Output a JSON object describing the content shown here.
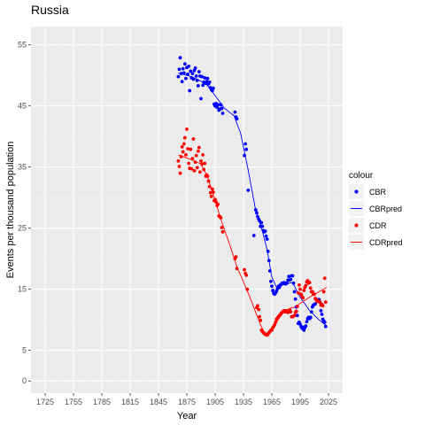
{
  "chart_data": {
    "type": "scatter",
    "title": "Russia",
    "xlabel": "Year",
    "ylabel": "Events per thousand population",
    "xlim": [
      1710,
      2040
    ],
    "ylim": [
      -2,
      58
    ],
    "x_ticks": [
      1725,
      1755,
      1785,
      1815,
      1845,
      1875,
      1905,
      1935,
      1965,
      1995,
      2025
    ],
    "y_ticks": [
      0,
      5,
      15,
      25,
      35,
      45,
      55
    ],
    "grid": true,
    "legend": {
      "title": "colour",
      "position": "right",
      "entries": [
        {
          "label": "CBR",
          "kind": "point",
          "color": "#0000ff"
        },
        {
          "label": "CBRpred",
          "kind": "line",
          "color": "#0000ff"
        },
        {
          "label": "CDR",
          "kind": "point",
          "color": "#ff0000"
        },
        {
          "label": "CDRpred",
          "kind": "line",
          "color": "#ff0000"
        }
      ]
    },
    "series": [
      {
        "name": "CBR",
        "kind": "point",
        "color": "#0000ff",
        "points": [
          [
            1866,
            49.8
          ],
          [
            1867,
            51.0
          ],
          [
            1868,
            52.9
          ],
          [
            1869,
            50.3
          ],
          [
            1870,
            49.0
          ],
          [
            1871,
            51.1
          ],
          [
            1872,
            50.4
          ],
          [
            1873,
            51.9
          ],
          [
            1874,
            49.5
          ],
          [
            1875,
            51.3
          ],
          [
            1876,
            50.2
          ],
          [
            1877,
            51.5
          ],
          [
            1878,
            47.5
          ],
          [
            1879,
            50.7
          ],
          [
            1880,
            49.6
          ],
          [
            1881,
            50.3
          ],
          [
            1882,
            49.4
          ],
          [
            1883,
            50.8
          ],
          [
            1884,
            51.2
          ],
          [
            1885,
            49.9
          ],
          [
            1886,
            49.2
          ],
          [
            1887,
            48.3
          ],
          [
            1888,
            50.6
          ],
          [
            1889,
            49.9
          ],
          [
            1890,
            46.2
          ],
          [
            1891,
            49.8
          ],
          [
            1892,
            48.4
          ],
          [
            1893,
            48.9
          ],
          [
            1894,
            49.6
          ],
          [
            1895,
            48.7
          ],
          [
            1896,
            49.0
          ],
          [
            1897,
            49.5
          ],
          [
            1898,
            48.6
          ],
          [
            1899,
            48.9
          ],
          [
            1900,
            48.0
          ],
          [
            1901,
            47.7
          ],
          [
            1902,
            47.5
          ],
          [
            1903,
            47.9
          ],
          [
            1904,
            45.3
          ],
          [
            1905,
            45.0
          ],
          [
            1906,
            45.4
          ],
          [
            1907,
            44.8
          ],
          [
            1908,
            45.2
          ],
          [
            1909,
            44.3
          ],
          [
            1910,
            44.5
          ],
          [
            1911,
            45.2
          ],
          [
            1912,
            44.6
          ],
          [
            1913,
            43.8
          ],
          [
            1926,
            44.0
          ],
          [
            1927,
            43.2
          ],
          [
            1928,
            42.9
          ],
          [
            1936,
            36.9
          ],
          [
            1937,
            38.8
          ],
          [
            1938,
            37.9
          ],
          [
            1940,
            31.2
          ],
          [
            1946,
            23.8
          ],
          [
            1948,
            28.0
          ],
          [
            1949,
            27.5
          ],
          [
            1950,
            26.9
          ],
          [
            1951,
            26.5
          ],
          [
            1952,
            26.2
          ],
          [
            1953,
            25.3
          ],
          [
            1954,
            25.9
          ],
          [
            1955,
            25.3
          ],
          [
            1956,
            24.6
          ],
          [
            1957,
            24.4
          ],
          [
            1958,
            24.5
          ],
          [
            1959,
            23.7
          ],
          [
            1960,
            23.2
          ],
          [
            1961,
            21.2
          ],
          [
            1962,
            19.7
          ],
          [
            1963,
            18.0
          ],
          [
            1964,
            16.3
          ],
          [
            1965,
            15.5
          ],
          [
            1966,
            14.8
          ],
          [
            1967,
            14.3
          ],
          [
            1968,
            14.2
          ],
          [
            1969,
            14.4
          ],
          [
            1970,
            14.7
          ],
          [
            1971,
            15.1
          ],
          [
            1972,
            15.5
          ],
          [
            1973,
            15.3
          ],
          [
            1974,
            15.7
          ],
          [
            1975,
            15.8
          ],
          [
            1976,
            16.0
          ],
          [
            1977,
            16.0
          ],
          [
            1978,
            16.1
          ],
          [
            1979,
            15.9
          ],
          [
            1980,
            15.9
          ],
          [
            1981,
            16.0
          ],
          [
            1982,
            16.5
          ],
          [
            1983,
            17.1
          ],
          [
            1984,
            16.5
          ],
          [
            1985,
            16.6
          ],
          [
            1986,
            17.2
          ],
          [
            1987,
            17.2
          ],
          [
            1988,
            16.0
          ],
          [
            1989,
            14.6
          ],
          [
            1990,
            13.4
          ],
          [
            1991,
            12.1
          ],
          [
            1992,
            10.7
          ],
          [
            1993,
            9.4
          ],
          [
            1994,
            9.6
          ],
          [
            1995,
            9.3
          ],
          [
            1996,
            8.9
          ],
          [
            1997,
            8.6
          ],
          [
            1998,
            8.8
          ],
          [
            1999,
            8.3
          ],
          [
            2000,
            8.7
          ],
          [
            2001,
            9.0
          ],
          [
            2002,
            9.7
          ],
          [
            2003,
            10.2
          ],
          [
            2004,
            10.4
          ],
          [
            2005,
            10.2
          ],
          [
            2006,
            10.4
          ],
          [
            2007,
            11.3
          ],
          [
            2008,
            12.1
          ],
          [
            2009,
            12.4
          ],
          [
            2010,
            12.5
          ],
          [
            2011,
            12.6
          ],
          [
            2012,
            13.3
          ],
          [
            2013,
            13.2
          ],
          [
            2014,
            13.3
          ],
          [
            2015,
            13.3
          ],
          [
            2016,
            12.9
          ],
          [
            2017,
            11.5
          ],
          [
            2018,
            10.9
          ],
          [
            2019,
            10.1
          ],
          [
            2020,
            9.8
          ],
          [
            2021,
            9.6
          ],
          [
            2022,
            8.9
          ]
        ]
      },
      {
        "name": "CBRpred",
        "kind": "line",
        "color": "#0000ff",
        "points": [
          [
            1866,
            50.4
          ],
          [
            1880,
            49.8
          ],
          [
            1895,
            48.7
          ],
          [
            1905,
            46.7
          ],
          [
            1915,
            44.6
          ],
          [
            1925,
            43.4
          ],
          [
            1932,
            40.5
          ],
          [
            1940,
            34.5
          ],
          [
            1948,
            27.8
          ],
          [
            1955,
            24.5
          ],
          [
            1960,
            21.5
          ],
          [
            1965,
            17.0
          ],
          [
            1970,
            15.3
          ],
          [
            1980,
            15.9
          ],
          [
            1987,
            16.1
          ],
          [
            1995,
            13.7
          ],
          [
            2005,
            11.5
          ],
          [
            2015,
            10.0
          ],
          [
            2023,
            9.0
          ]
        ]
      },
      {
        "name": "CDR",
        "kind": "point",
        "color": "#ff0000",
        "points": [
          [
            1866,
            36.0
          ],
          [
            1867,
            35.1
          ],
          [
            1868,
            34.0
          ],
          [
            1869,
            36.7
          ],
          [
            1870,
            38.3
          ],
          [
            1871,
            37.5
          ],
          [
            1872,
            38.8
          ],
          [
            1873,
            39.8
          ],
          [
            1874,
            37.0
          ],
          [
            1875,
            41.2
          ],
          [
            1876,
            38.0
          ],
          [
            1877,
            35.6
          ],
          [
            1878,
            34.8
          ],
          [
            1879,
            37.9
          ],
          [
            1880,
            34.7
          ],
          [
            1881,
            36.4
          ],
          [
            1882,
            39.6
          ],
          [
            1883,
            34.4
          ],
          [
            1884,
            35.8
          ],
          [
            1885,
            36.9
          ],
          [
            1886,
            34.9
          ],
          [
            1887,
            37.6
          ],
          [
            1888,
            38.2
          ],
          [
            1889,
            34.2
          ],
          [
            1890,
            36.0
          ],
          [
            1891,
            35.5
          ],
          [
            1892,
            37.0
          ],
          [
            1893,
            34.6
          ],
          [
            1894,
            35.6
          ],
          [
            1895,
            33.5
          ],
          [
            1896,
            33.7
          ],
          [
            1897,
            33.5
          ],
          [
            1898,
            32.7
          ],
          [
            1899,
            31.8
          ],
          [
            1900,
            30.8
          ],
          [
            1901,
            30.2
          ],
          [
            1902,
            31.4
          ],
          [
            1903,
            30.9
          ],
          [
            1904,
            29.5
          ],
          [
            1905,
            29.7
          ],
          [
            1906,
            29.3
          ],
          [
            1907,
            28.7
          ],
          [
            1908,
            28.9
          ],
          [
            1909,
            27.0
          ],
          [
            1910,
            26.9
          ],
          [
            1911,
            26.7
          ],
          [
            1912,
            25.1
          ],
          [
            1913,
            24.4
          ],
          [
            1926,
            20.0
          ],
          [
            1927,
            20.3
          ],
          [
            1928,
            18.4
          ],
          [
            1936,
            18.2
          ],
          [
            1937,
            17.6
          ],
          [
            1938,
            17.3
          ],
          [
            1939,
            15.0
          ],
          [
            1949,
            12.0
          ],
          [
            1950,
            12.3
          ],
          [
            1951,
            11.7
          ],
          [
            1952,
            10.5
          ],
          [
            1953,
            9.9
          ],
          [
            1954,
            8.3
          ],
          [
            1955,
            8.1
          ],
          [
            1956,
            7.9
          ],
          [
            1957,
            7.8
          ],
          [
            1958,
            7.6
          ],
          [
            1959,
            7.6
          ],
          [
            1960,
            7.5
          ],
          [
            1961,
            7.7
          ],
          [
            1962,
            7.9
          ],
          [
            1963,
            8.1
          ],
          [
            1964,
            8.3
          ],
          [
            1965,
            8.3
          ],
          [
            1966,
            8.7
          ],
          [
            1967,
            8.9
          ],
          [
            1968,
            9.2
          ],
          [
            1969,
            9.6
          ],
          [
            1970,
            10.1
          ],
          [
            1971,
            10.3
          ],
          [
            1972,
            10.5
          ],
          [
            1973,
            10.7
          ],
          [
            1974,
            10.8
          ],
          [
            1975,
            11.1
          ],
          [
            1976,
            11.2
          ],
          [
            1977,
            11.4
          ],
          [
            1978,
            11.5
          ],
          [
            1979,
            11.3
          ],
          [
            1980,
            11.5
          ],
          [
            1981,
            11.3
          ],
          [
            1982,
            11.2
          ],
          [
            1983,
            11.3
          ],
          [
            1984,
            11.6
          ],
          [
            1985,
            11.3
          ],
          [
            1986,
            10.5
          ],
          [
            1987,
            10.5
          ],
          [
            1988,
            10.6
          ],
          [
            1989,
            10.7
          ],
          [
            1990,
            11.2
          ],
          [
            1991,
            11.4
          ],
          [
            1992,
            12.2
          ],
          [
            1993,
            14.4
          ],
          [
            1994,
            15.7
          ],
          [
            1995,
            15.0
          ],
          [
            1996,
            14.2
          ],
          [
            1997,
            13.8
          ],
          [
            1998,
            13.6
          ],
          [
            1999,
            14.8
          ],
          [
            2000,
            15.3
          ],
          [
            2001,
            15.6
          ],
          [
            2002,
            16.2
          ],
          [
            2003,
            16.4
          ],
          [
            2004,
            16.0
          ],
          [
            2005,
            16.1
          ],
          [
            2006,
            15.2
          ],
          [
            2007,
            14.6
          ],
          [
            2008,
            14.6
          ],
          [
            2009,
            14.2
          ],
          [
            2010,
            14.2
          ],
          [
            2011,
            13.5
          ],
          [
            2012,
            13.3
          ],
          [
            2013,
            13.0
          ],
          [
            2014,
            13.1
          ],
          [
            2015,
            13.0
          ],
          [
            2016,
            12.9
          ],
          [
            2017,
            12.4
          ],
          [
            2018,
            12.5
          ],
          [
            2019,
            12.3
          ],
          [
            2020,
            14.6
          ],
          [
            2021,
            16.8
          ],
          [
            2022,
            12.9
          ]
        ]
      },
      {
        "name": "CDRpred",
        "kind": "line",
        "color": "#ff0000",
        "points": [
          [
            1866,
            37.0
          ],
          [
            1880,
            36.2
          ],
          [
            1890,
            35.5
          ],
          [
            1897,
            33.4
          ],
          [
            1905,
            29.5
          ],
          [
            1912,
            26.0
          ],
          [
            1920,
            22.5
          ],
          [
            1928,
            18.7
          ],
          [
            1935,
            16.2
          ],
          [
            1942,
            13.6
          ],
          [
            1948,
            11.2
          ],
          [
            1953,
            9.2
          ],
          [
            1957,
            7.9
          ],
          [
            1961,
            7.8
          ],
          [
            1965,
            8.4
          ],
          [
            1970,
            9.6
          ],
          [
            1975,
            10.8
          ],
          [
            1980,
            11.6
          ],
          [
            1985,
            11.9
          ],
          [
            1990,
            12.1
          ],
          [
            1995,
            12.7
          ],
          [
            2005,
            13.7
          ],
          [
            2015,
            14.6
          ],
          [
            2023,
            15.3
          ]
        ]
      }
    ]
  }
}
